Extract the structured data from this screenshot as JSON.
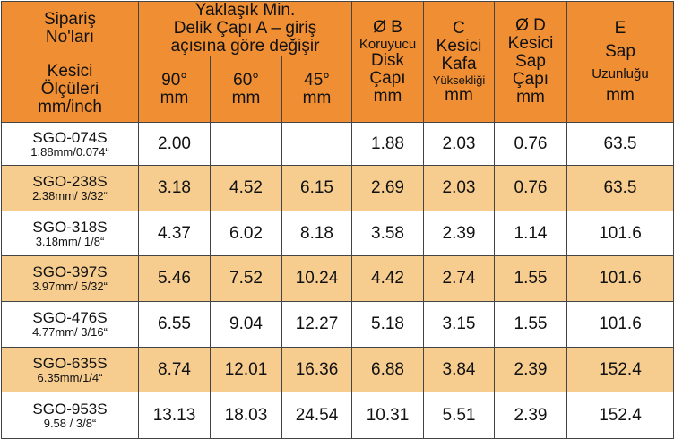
{
  "header": {
    "order_no": [
      "Sipariş",
      "No'ları"
    ],
    "cutter_size": [
      "Kesici",
      "Ölçüleri",
      "mm/inch"
    ],
    "hole_dia_title": [
      "Yaklaşık Min.",
      "Delik Çapı A – giriş",
      "açısına göre değişir"
    ],
    "angles": [
      {
        "angle": "90°",
        "unit": "mm"
      },
      {
        "angle": "60°",
        "unit": "mm"
      },
      {
        "angle": "45°",
        "unit": "mm"
      }
    ],
    "col_b": [
      "Ø B",
      "Koruyucu",
      "Disk",
      "Çapı",
      "mm"
    ],
    "col_c": [
      "C",
      "Kesici",
      "Kafa",
      "Yüksekliği",
      "mm"
    ],
    "col_d": [
      "Ø D",
      "Kesici",
      "Sap",
      "Çapı",
      "mm"
    ],
    "col_e": [
      "E",
      "Sap",
      "Uzunluğu",
      "mm"
    ]
  },
  "rows": [
    {
      "code": "SGO-074S",
      "size": "1.88mm/0.074“",
      "a90": "2.00",
      "a60": "",
      "a45": "",
      "b": "1.88",
      "c": "2.03",
      "d": "0.76",
      "e": "63.5"
    },
    {
      "code": "SGO-238S",
      "size": "2.38mm/ 3/32“",
      "a90": "3.18",
      "a60": "4.52",
      "a45": "6.15",
      "b": "2.69",
      "c": "2.03",
      "d": "0.76",
      "e": "63.5"
    },
    {
      "code": "SGO-318S",
      "size": "3.18mm/ 1/8“",
      "a90": "4.37",
      "a60": "6.02",
      "a45": "8.18",
      "b": "3.58",
      "c": "2.39",
      "d": "1.14",
      "e": "101.6"
    },
    {
      "code": "SGO-397S",
      "size": "3.97mm/ 5/32“",
      "a90": "5.46",
      "a60": "7.52",
      "a45": "10.24",
      "b": "4.42",
      "c": "2.74",
      "d": "1.55",
      "e": "101.6"
    },
    {
      "code": "SGO-476S",
      "size": "4.77mm/ 3/16“",
      "a90": "6.55",
      "a60": "9.04",
      "a45": "12.27",
      "b": "5.18",
      "c": "3.15",
      "d": "1.55",
      "e": "101.6"
    },
    {
      "code": "SGO-635S",
      "size": "6.35mm/1/4“",
      "a90": "8.74",
      "a60": "12.01",
      "a45": "16.36",
      "b": "6.88",
      "c": "3.84",
      "d": "2.39",
      "e": "152.4"
    },
    {
      "code": "SGO-953S",
      "size": "9.58 / 3/8“",
      "a90": "13.13",
      "a60": "18.03",
      "a45": "24.54",
      "b": "10.31",
      "c": "5.51",
      "d": "2.39",
      "e": "152.4"
    }
  ],
  "colors": {
    "header_bg": "#ef8e33",
    "alt_row_bg": "#f6cd8f",
    "row_bg": "#ffffff"
  }
}
